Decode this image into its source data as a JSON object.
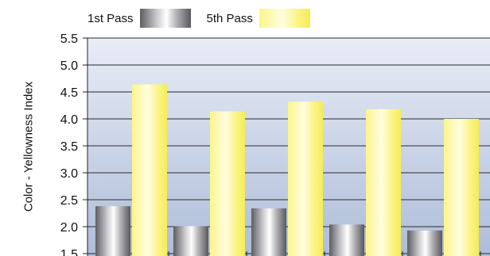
{
  "chart_data": {
    "type": "bar",
    "title": "",
    "xlabel": "",
    "ylabel": "Color - Yellowness Index",
    "categories": [
      "",
      "",
      "",
      "",
      ""
    ],
    "series": [
      {
        "name": "1st Pass",
        "values": [
          2.38,
          2.01,
          2.34,
          2.04,
          1.93
        ]
      },
      {
        "name": "5th Pass",
        "values": [
          4.64,
          4.14,
          4.32,
          4.18,
          4.0
        ]
      }
    ],
    "ylim": [
      1.5,
      5.5
    ],
    "yticks": [
      "1.5",
      "2.0",
      "2.5",
      "3.0",
      "3.5",
      "4.0",
      "4.5",
      "5.0",
      "5.5"
    ],
    "grid": true,
    "legend_position": "top-left",
    "colors": {
      "plot_bg_top": "#e8ecf6",
      "plot_bg_bottom": "#aebdd9",
      "series_1": "#9a9aa0",
      "series_2": "#fbf47a"
    }
  }
}
